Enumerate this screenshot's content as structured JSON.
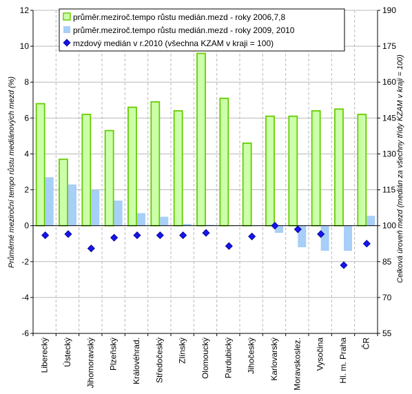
{
  "chart_data": {
    "type": "bar",
    "categories": [
      "Liberecký",
      "Ústecký",
      "Jihomoravský",
      "Plzeňský",
      "Královéhrad.",
      "Středočeský",
      "Zlínský",
      "Olomoucký",
      "Pardubický",
      "Jihočeský",
      "Karlovarský",
      "Moravskoslez.",
      "Vysočina",
      "Hl. m. Praha",
      "ČR"
    ],
    "series": [
      {
        "name": "průměr.meziroč.tempo růstu medián.mezd - roky 2006,7,8",
        "type": "bar",
        "axis": "left",
        "color": "#ccffaa",
        "edge_color": "#66cc00",
        "values": [
          6.8,
          3.7,
          6.2,
          5.3,
          6.6,
          6.9,
          6.4,
          9.6,
          7.1,
          4.6,
          6.1,
          6.1,
          6.4,
          6.5,
          6.2
        ]
      },
      {
        "name": "průměr.meziroč.tempo růstu medián.mezd - roky 2009, 2010",
        "type": "bar",
        "axis": "left",
        "color": "#a7cff7",
        "values": [
          2.7,
          2.3,
          2.0,
          1.4,
          0.7,
          0.5,
          0.1,
          0.05,
          0.0,
          0.0,
          -0.4,
          -1.2,
          -1.4,
          -1.4,
          0.55
        ]
      },
      {
        "name": "mzdový medián v r.2010 (všechna KZAM v kraji = 100)",
        "type": "scatter",
        "axis": "right",
        "color": "#1515ee",
        "marker": "diamond",
        "values": [
          96,
          96.5,
          90.5,
          95,
          96,
          96,
          96,
          97,
          91.5,
          95.5,
          100,
          98.5,
          96.5,
          83.5,
          92.5
        ]
      }
    ],
    "ylabel": "Průměrné meziroční tempo růstu mediánových mezd (%)",
    "y2label": "Celková úroveň mezd (medián za všechny třídy KZAM v kraji = 100)",
    "ylim": [
      -6,
      12
    ],
    "y2lim": [
      55,
      190
    ],
    "yticks": [
      "-6",
      "-4",
      "-2",
      "0",
      "2",
      "4",
      "6",
      "8",
      "10",
      "12"
    ],
    "y2ticks": [
      "55",
      "70",
      "85",
      "100",
      "115",
      "130",
      "145",
      "160",
      "175",
      "190"
    ],
    "grid": true,
    "legend": "top"
  }
}
